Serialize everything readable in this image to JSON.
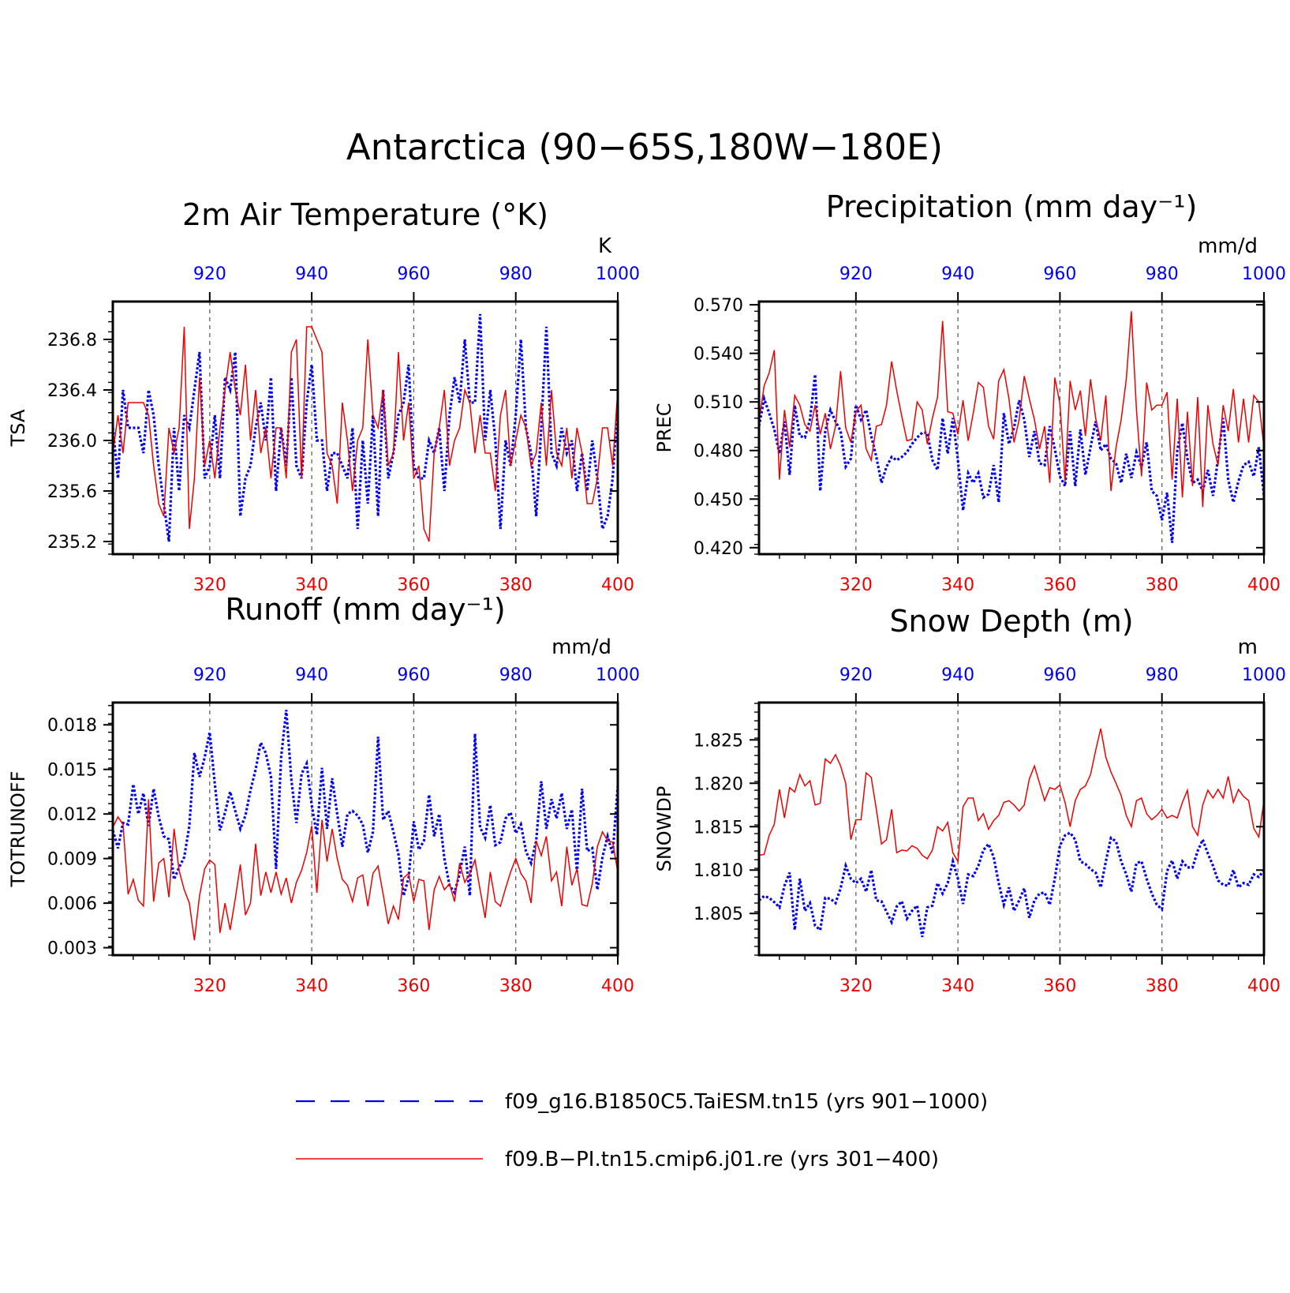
{
  "figure": {
    "title": "Antarctica (90−65S,180W−180E)"
  },
  "colors": {
    "blue": "#0000ee",
    "red": "#ee0000",
    "axis": "#000000",
    "gridline": "#555555"
  },
  "legend": [
    {
      "label": "f09_g16.B1850C5.TaiESM.tn15 (yrs 901−1000)",
      "color": "#0000ee",
      "style": "dashed"
    },
    {
      "label": "f09.B−PI.tn15.cmip6.j01.re (yrs 301−400)",
      "color": "#ee0000",
      "style": "solid"
    }
  ],
  "chart_data": [
    {
      "type": "line",
      "title": "2m Air Temperature (°K)",
      "ylabel": "TSA",
      "unit": "K",
      "ylim": [
        235.1,
        237.1
      ],
      "yticks": [
        "235.2",
        "235.6",
        "236.0",
        "236.4",
        "236.8"
      ],
      "xlim_bottom": [
        301,
        400
      ],
      "xticks_bottom": [
        "320",
        "340",
        "360",
        "380",
        "400"
      ],
      "xlim_top": [
        901,
        1000
      ],
      "xticks_top": [
        "920",
        "940",
        "960",
        "980",
        "1000"
      ],
      "series": [
        {
          "years": "901−1000",
          "axis": "top",
          "values": [
            236.1,
            235.7,
            236.4,
            236.1,
            236.1,
            236.1,
            235.9,
            236.4,
            236.2,
            235.8,
            235.5,
            235.2,
            236.1,
            235.6,
            236.2,
            236.1,
            236.4,
            236.7,
            235.7,
            235.8,
            236.2,
            235.7,
            236.5,
            236.4,
            236.7,
            235.4,
            235.7,
            235.8,
            236.1,
            236.3,
            236.0,
            236.5,
            235.6,
            236.1,
            235.8,
            236.5,
            235.8,
            235.7,
            236.3,
            236.6,
            236.0,
            236.0,
            235.6,
            235.9,
            235.9,
            235.8,
            235.7,
            236.1,
            235.3,
            236.0,
            235.5,
            236.2,
            235.4,
            236.4,
            235.7,
            235.9,
            236.2,
            236.3,
            236.6,
            235.8,
            235.7,
            235.7,
            236.0,
            235.9,
            236.1,
            235.6,
            236.2,
            236.5,
            236.3,
            236.8,
            236.3,
            236.3,
            237.0,
            236.0,
            236.4,
            236.0,
            235.3,
            236.0,
            235.8,
            236.2,
            236.8,
            236.1,
            235.9,
            235.4,
            236.1,
            236.9,
            235.9,
            235.8,
            236.1,
            235.9,
            236.0,
            235.6,
            235.9,
            235.6,
            236.0,
            235.7,
            235.3,
            235.4,
            235.7,
            236.3
          ]
        },
        {
          "years": "301−400",
          "axis": "bottom",
          "values": [
            235.9,
            236.2,
            235.9,
            236.3,
            236.3,
            236.3,
            236.3,
            236.2,
            235.8,
            235.5,
            235.4,
            236.1,
            235.9,
            236.1,
            236.9,
            235.3,
            235.7,
            236.5,
            235.8,
            236.0,
            235.7,
            236.1,
            236.4,
            236.7,
            236.4,
            236.2,
            236.6,
            236.0,
            236.4,
            235.9,
            236.1,
            235.7,
            236.1,
            236.1,
            235.7,
            236.7,
            236.8,
            235.7,
            236.9,
            236.9,
            236.8,
            236.7,
            235.9,
            235.8,
            235.5,
            236.3,
            236.0,
            235.6,
            236.0,
            236.1,
            236.8,
            236.2,
            236.1,
            236.4,
            235.8,
            235.9,
            236.7,
            236.0,
            236.3,
            235.7,
            235.8,
            235.3,
            235.2,
            235.9,
            236.1,
            236.4,
            235.8,
            236.0,
            236.1,
            236.4,
            236.3,
            235.9,
            236.2,
            235.9,
            235.9,
            235.6,
            236.2,
            236.4,
            235.8,
            236.0,
            236.2,
            236.1,
            235.8,
            235.9,
            236.3,
            235.8,
            236.4,
            235.9,
            235.8,
            236.1,
            235.7,
            236.1,
            235.9,
            235.5,
            235.5,
            235.7,
            236.1,
            236.1,
            235.8,
            236.4
          ]
        }
      ]
    },
    {
      "type": "line",
      "title": "Precipitation (mm day⁻¹)",
      "ylabel": "PREC",
      "unit": "mm/d",
      "ylim": [
        0.416,
        0.572
      ],
      "yticks": [
        "0.420",
        "0.450",
        "0.480",
        "0.510",
        "0.540",
        "0.570"
      ],
      "xlim_bottom": [
        301,
        400
      ],
      "xticks_bottom": [
        "320",
        "340",
        "360",
        "380",
        "400"
      ],
      "xlim_top": [
        901,
        1000
      ],
      "xticks_top": [
        "920",
        "940",
        "960",
        "980",
        "1000"
      ],
      "series": [
        {
          "years": "901−1000",
          "axis": "top",
          "values": [
            0.495,
            0.512,
            0.503,
            0.493,
            0.478,
            0.498,
            0.465,
            0.508,
            0.489,
            0.488,
            0.499,
            0.527,
            0.455,
            0.492,
            0.505,
            0.498,
            0.492,
            0.47,
            0.475,
            0.508,
            0.499,
            0.505,
            0.489,
            0.476,
            0.46,
            0.47,
            0.476,
            0.474,
            0.476,
            0.479,
            0.484,
            0.488,
            0.491,
            0.491,
            0.474,
            0.468,
            0.5,
            0.478,
            0.5,
            0.474,
            0.443,
            0.466,
            0.46,
            0.466,
            0.451,
            0.453,
            0.471,
            0.448,
            0.503,
            0.484,
            0.494,
            0.511,
            0.499,
            0.476,
            0.492,
            0.472,
            0.471,
            0.495,
            0.481,
            0.464,
            0.458,
            0.492,
            0.458,
            0.493,
            0.465,
            0.482,
            0.498,
            0.48,
            0.484,
            0.475,
            0.472,
            0.46,
            0.478,
            0.463,
            0.479,
            0.47,
            0.485,
            0.455,
            0.452,
            0.437,
            0.454,
            0.423,
            0.48,
            0.497,
            0.475,
            0.46,
            0.462,
            0.455,
            0.468,
            0.452,
            0.475,
            0.5,
            0.462,
            0.448,
            0.461,
            0.471,
            0.473,
            0.464,
            0.482,
            0.452
          ]
        },
        {
          "years": "301−400",
          "axis": "bottom",
          "values": [
            0.498,
            0.52,
            0.528,
            0.542,
            0.462,
            0.505,
            0.482,
            0.514,
            0.508,
            0.496,
            0.492,
            0.508,
            0.49,
            0.503,
            0.481,
            0.495,
            0.529,
            0.494,
            0.485,
            0.504,
            0.508,
            0.481,
            0.474,
            0.495,
            0.496,
            0.508,
            0.535,
            0.517,
            0.501,
            0.486,
            0.487,
            0.51,
            0.505,
            0.484,
            0.5,
            0.513,
            0.56,
            0.504,
            0.503,
            0.49,
            0.511,
            0.486,
            0.503,
            0.522,
            0.519,
            0.495,
            0.487,
            0.523,
            0.53,
            0.512,
            0.485,
            0.499,
            0.526,
            0.512,
            0.499,
            0.481,
            0.495,
            0.46,
            0.525,
            0.509,
            0.461,
            0.523,
            0.505,
            0.517,
            0.489,
            0.524,
            0.5,
            0.486,
            0.514,
            0.455,
            0.482,
            0.499,
            0.524,
            0.566,
            0.505,
            0.464,
            0.522,
            0.505,
            0.508,
            0.508,
            0.516,
            0.462,
            0.512,
            0.451,
            0.504,
            0.458,
            0.513,
            0.445,
            0.508,
            0.484,
            0.471,
            0.508,
            0.492,
            0.518,
            0.485,
            0.512,
            0.485,
            0.514,
            0.51,
            0.482
          ]
        }
      ]
    },
    {
      "type": "line",
      "title": "Runoff (mm day⁻¹)",
      "ylabel": "TOTRUNOFF",
      "unit": "mm/d",
      "ylim": [
        0.0025,
        0.0195
      ],
      "yticks": [
        "0.003",
        "0.006",
        "0.009",
        "0.012",
        "0.015",
        "0.018"
      ],
      "xlim_bottom": [
        301,
        400
      ],
      "xticks_bottom": [
        "320",
        "340",
        "360",
        "380",
        "400"
      ],
      "xlim_top": [
        901,
        1000
      ],
      "xticks_top": [
        "920",
        "940",
        "960",
        "980",
        "1000"
      ],
      "series": [
        {
          "years": "901−1000",
          "axis": "top",
          "values": [
            0.0109,
            0.0097,
            0.0114,
            0.0113,
            0.014,
            0.012,
            0.0134,
            0.0112,
            0.0137,
            0.0118,
            0.0105,
            0.0103,
            0.0076,
            0.0084,
            0.0091,
            0.0112,
            0.0161,
            0.0145,
            0.0158,
            0.0175,
            0.014,
            0.0109,
            0.0121,
            0.0135,
            0.0122,
            0.011,
            0.0119,
            0.0136,
            0.015,
            0.0168,
            0.0161,
            0.0145,
            0.0083,
            0.0158,
            0.019,
            0.0143,
            0.0114,
            0.0147,
            0.0154,
            0.0126,
            0.0106,
            0.0151,
            0.011,
            0.0144,
            0.012,
            0.0098,
            0.012,
            0.0122,
            0.0119,
            0.0113,
            0.0094,
            0.0108,
            0.0172,
            0.0116,
            0.0122,
            0.0108,
            0.0093,
            0.0065,
            0.0077,
            0.0115,
            0.0096,
            0.0102,
            0.0133,
            0.0105,
            0.012,
            0.009,
            0.0072,
            0.0067,
            0.008,
            0.0098,
            0.0065,
            0.0174,
            0.0111,
            0.0104,
            0.0126,
            0.0099,
            0.0101,
            0.0117,
            0.0121,
            0.0107,
            0.0113,
            0.0095,
            0.0087,
            0.0102,
            0.0142,
            0.011,
            0.013,
            0.0117,
            0.0134,
            0.011,
            0.0123,
            0.0081,
            0.0137,
            0.0095,
            0.0097,
            0.0069,
            0.0091,
            0.0105,
            0.0093,
            0.0139
          ]
        },
        {
          "years": "301−400",
          "axis": "bottom",
          "values": [
            0.0111,
            0.0118,
            0.0113,
            0.0066,
            0.0076,
            0.0062,
            0.0058,
            0.013,
            0.0061,
            0.0087,
            0.009,
            0.0064,
            0.011,
            0.0082,
            0.0069,
            0.006,
            0.0035,
            0.0065,
            0.0083,
            0.0089,
            0.0086,
            0.004,
            0.006,
            0.0042,
            0.0063,
            0.0086,
            0.0052,
            0.006,
            0.01,
            0.0065,
            0.0081,
            0.0067,
            0.0081,
            0.0066,
            0.0077,
            0.006,
            0.0074,
            0.0082,
            0.0094,
            0.0112,
            0.0067,
            0.0116,
            0.0088,
            0.011,
            0.009,
            0.0076,
            0.0072,
            0.0061,
            0.0077,
            0.0079,
            0.0058,
            0.008,
            0.0085,
            0.0066,
            0.0046,
            0.0058,
            0.0049,
            0.0077,
            0.008,
            0.0061,
            0.0076,
            0.0075,
            0.0042,
            0.0069,
            0.0078,
            0.0069,
            0.0073,
            0.0061,
            0.0087,
            0.0074,
            0.008,
            0.0089,
            0.0069,
            0.005,
            0.0081,
            0.0061,
            0.0058,
            0.007,
            0.0081,
            0.009,
            0.008,
            0.0075,
            0.006,
            0.0102,
            0.0092,
            0.0105,
            0.0075,
            0.0081,
            0.0058,
            0.0098,
            0.0072,
            0.0083,
            0.0059,
            0.0058,
            0.0073,
            0.0098,
            0.0108,
            0.0102,
            0.0101,
            0.0081
          ]
        }
      ]
    },
    {
      "type": "line",
      "title": "Snow Depth (m)",
      "ylabel": "SNOWDP",
      "unit": "m",
      "ylim": [
        1.8002,
        1.8293
      ],
      "yticks": [
        "1.805",
        "1.810",
        "1.815",
        "1.820",
        "1.825"
      ],
      "xlim_bottom": [
        301,
        400
      ],
      "xticks_bottom": [
        "320",
        "340",
        "360",
        "380",
        "400"
      ],
      "xlim_top": [
        901,
        1000
      ],
      "xticks_top": [
        "920",
        "940",
        "960",
        "980",
        "1000"
      ],
      "series": [
        {
          "years": "901−1000",
          "axis": "top",
          "values": [
            1.8065,
            1.807,
            1.8068,
            1.8063,
            1.8057,
            1.8082,
            1.8097,
            1.8031,
            1.809,
            1.8053,
            1.8062,
            1.8036,
            1.8031,
            1.8068,
            1.8067,
            1.8062,
            1.8079,
            1.8105,
            1.809,
            1.8085,
            1.809,
            1.8075,
            1.81,
            1.8065,
            1.8064,
            1.8052,
            1.804,
            1.8058,
            1.8064,
            1.8044,
            1.8053,
            1.8059,
            1.8023,
            1.8057,
            1.8059,
            1.8085,
            1.8073,
            1.8085,
            1.811,
            1.809,
            1.8061,
            1.8095,
            1.8093,
            1.8105,
            1.8123,
            1.813,
            1.8115,
            1.8085,
            1.806,
            1.808,
            1.8053,
            1.8065,
            1.8079,
            1.8045,
            1.8065,
            1.8073,
            1.8074,
            1.806,
            1.809,
            1.8128,
            1.814,
            1.8143,
            1.8135,
            1.811,
            1.8107,
            1.8101,
            1.8097,
            1.808,
            1.811,
            1.8137,
            1.8133,
            1.811,
            1.8095,
            1.8075,
            1.8108,
            1.811,
            1.809,
            1.8073,
            1.806,
            1.8055,
            1.8099,
            1.8111,
            1.809,
            1.811,
            1.8103,
            1.8103,
            1.8122,
            1.8135,
            1.8119,
            1.8105,
            1.8088,
            1.8083,
            1.8082,
            1.81,
            1.808,
            1.8085,
            1.8083,
            1.8095,
            1.8092,
            1.81
          ]
        },
        {
          "years": "301−400",
          "axis": "bottom",
          "values": [
            1.8117,
            1.8118,
            1.814,
            1.8153,
            1.8193,
            1.816,
            1.8195,
            1.819,
            1.821,
            1.8197,
            1.8203,
            1.8175,
            1.8177,
            1.8228,
            1.8223,
            1.8233,
            1.822,
            1.82,
            1.8135,
            1.8158,
            1.8158,
            1.8212,
            1.8207,
            1.817,
            1.813,
            1.8135,
            1.817,
            1.812,
            1.8123,
            1.8122,
            1.8128,
            1.8125,
            1.8117,
            1.8113,
            1.8123,
            1.815,
            1.8145,
            1.8155,
            1.812,
            1.811,
            1.8173,
            1.8183,
            1.8183,
            1.8157,
            1.8165,
            1.8147,
            1.8157,
            1.8163,
            1.8178,
            1.818,
            1.8175,
            1.8168,
            1.8175,
            1.8205,
            1.822,
            1.82,
            1.818,
            1.8195,
            1.8193,
            1.8198,
            1.8178,
            1.815,
            1.818,
            1.8193,
            1.8197,
            1.821,
            1.8238,
            1.8263,
            1.823,
            1.8213,
            1.82,
            1.8186,
            1.8163,
            1.815,
            1.818,
            1.8183,
            1.8165,
            1.8158,
            1.8163,
            1.817,
            1.816,
            1.8163,
            1.816,
            1.8178,
            1.8192,
            1.815,
            1.814,
            1.8175,
            1.8192,
            1.8183,
            1.8193,
            1.8183,
            1.8208,
            1.8178,
            1.8193,
            1.8185,
            1.818,
            1.8148,
            1.8138,
            1.818
          ]
        }
      ]
    }
  ]
}
